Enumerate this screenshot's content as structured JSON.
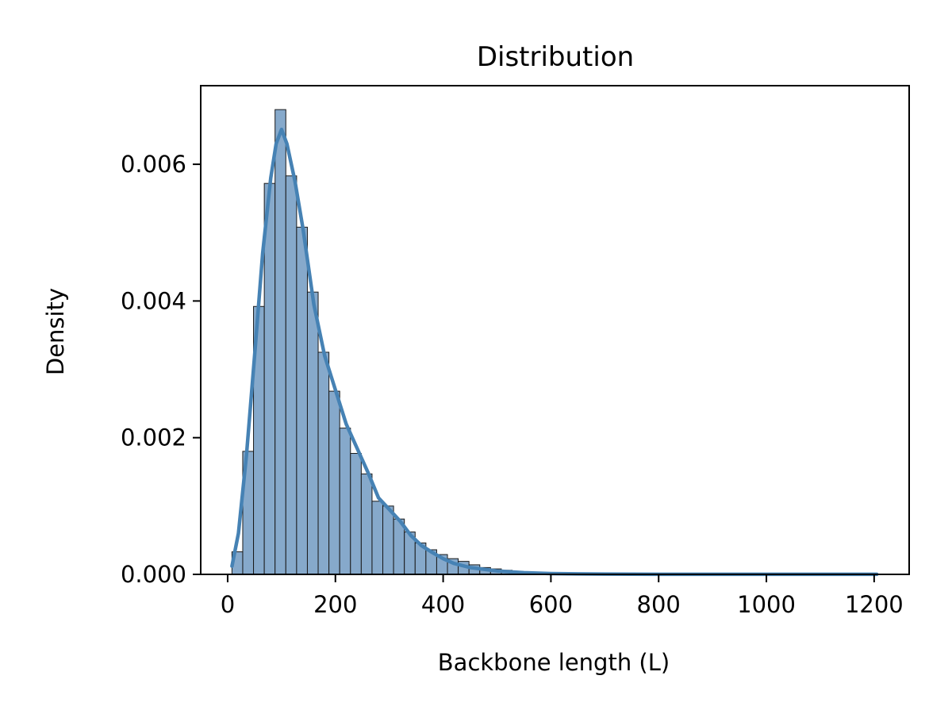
{
  "chart_data": {
    "type": "bar",
    "title": "Distribution",
    "xlabel": "Backbone length (L)",
    "ylabel": "Density",
    "xlim": [
      -50,
      1265
    ],
    "ylim": [
      0,
      0.00715
    ],
    "xticks": [
      0,
      200,
      400,
      600,
      800,
      1000,
      1200
    ],
    "xtick_labels": [
      "0",
      "200",
      "400",
      "600",
      "800",
      "1000",
      "1200"
    ],
    "yticks": [
      0,
      0.002,
      0.004,
      0.006
    ],
    "ytick_labels": [
      "0.000",
      "0.002",
      "0.004",
      "0.006"
    ],
    "grid": false,
    "legend": "none",
    "bin_width": 20,
    "bin_start": 8,
    "histogram": [
      0.00033,
      0.0018,
      0.00392,
      0.00572,
      0.0068,
      0.00583,
      0.00508,
      0.00413,
      0.00325,
      0.00268,
      0.00214,
      0.00177,
      0.00147,
      0.00107,
      0.001,
      0.00081,
      0.00062,
      0.00046,
      0.00036,
      0.00029,
      0.00023,
      0.00019,
      0.00014,
      0.0001,
      8e-05,
      6e-05,
      4e-05,
      3e-05,
      2e-05,
      2e-05,
      1.5e-05,
      1e-05,
      1e-05,
      1e-05,
      5e-06,
      5e-06
    ],
    "kde": {
      "x": [
        8,
        20,
        35,
        50,
        65,
        80,
        90,
        100,
        110,
        125,
        140,
        160,
        180,
        200,
        220,
        240,
        260,
        280,
        300,
        320,
        340,
        360,
        380,
        400,
        420,
        450,
        500,
        550,
        600,
        650,
        700,
        800,
        900,
        1000,
        1100,
        1205
      ],
      "y": [
        0.00012,
        0.0006,
        0.00175,
        0.0032,
        0.0047,
        0.0058,
        0.0063,
        0.00651,
        0.0063,
        0.00575,
        0.00505,
        0.00395,
        0.0032,
        0.0027,
        0.0022,
        0.00185,
        0.0015,
        0.00112,
        0.00095,
        0.00078,
        0.00057,
        0.00042,
        0.00032,
        0.00023,
        0.00016,
        0.0001,
        5e-05,
        2.5e-05,
        1.2e-05,
        7e-06,
        4e-06,
        2e-06,
        2e-06,
        1e-06,
        1e-06,
        1e-06
      ]
    },
    "colors": {
      "bar_fill": "#86a9cb",
      "bar_edge": "#1a1a1a",
      "line": "#4682b4",
      "axis": "#000000"
    }
  }
}
